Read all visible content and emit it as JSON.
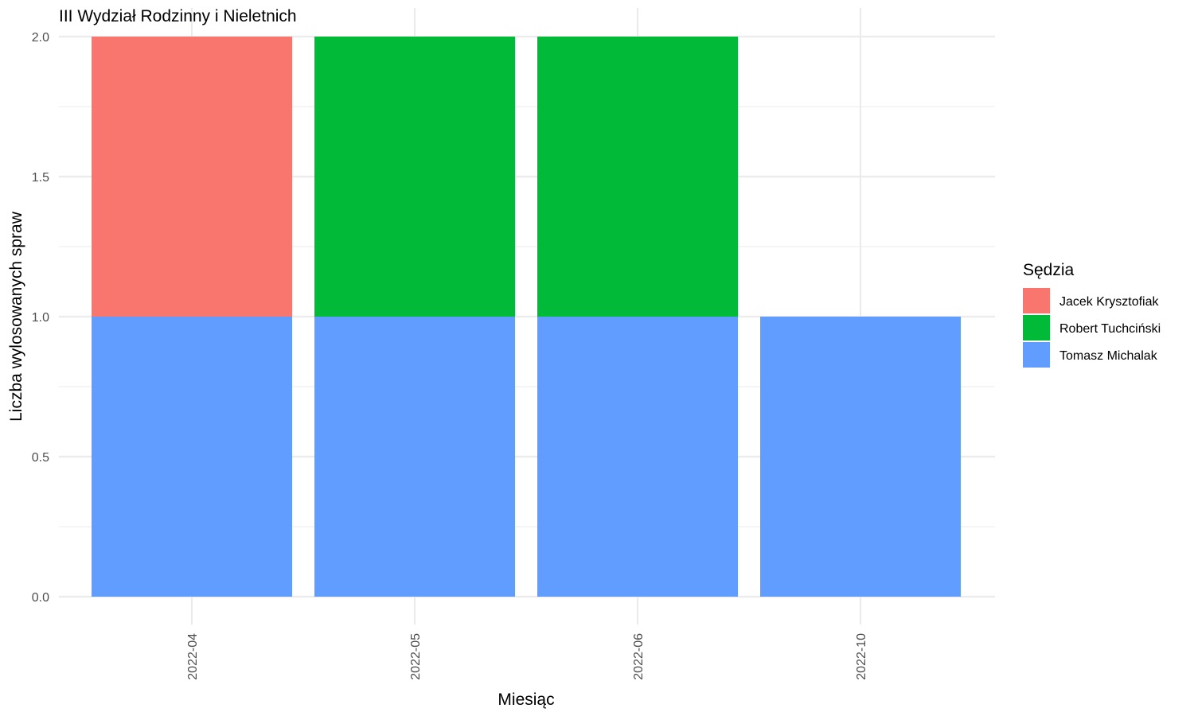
{
  "chart_data": {
    "type": "bar",
    "stacked": true,
    "title": "III Wydział Rodzinny i Nieletnich",
    "xlabel": "Miesiąc",
    "ylabel": "Liczba wylosowanych spraw",
    "categories": [
      "2022-04",
      "2022-05",
      "2022-06",
      "2022-10"
    ],
    "ylim": [
      0,
      2
    ],
    "yticks": [
      "0.0",
      "0.5",
      "1.0",
      "1.5",
      "2.0"
    ],
    "grid": true,
    "legend": {
      "title": "Sędzia",
      "position": "right"
    },
    "series": [
      {
        "name": "Jacek Krysztofiak",
        "color": "#F8766D",
        "values": [
          1,
          0,
          0,
          0
        ]
      },
      {
        "name": "Robert Tuchciński",
        "color": "#00BA38",
        "values": [
          0,
          1,
          1,
          0
        ]
      },
      {
        "name": "Tomasz Michalak",
        "color": "#619CFF",
        "values": [
          1,
          1,
          1,
          1
        ]
      }
    ],
    "stack_order_bottom_to_top": [
      "Tomasz Michalak",
      "Robert Tuchciński",
      "Jacek Krysztofiak"
    ]
  }
}
